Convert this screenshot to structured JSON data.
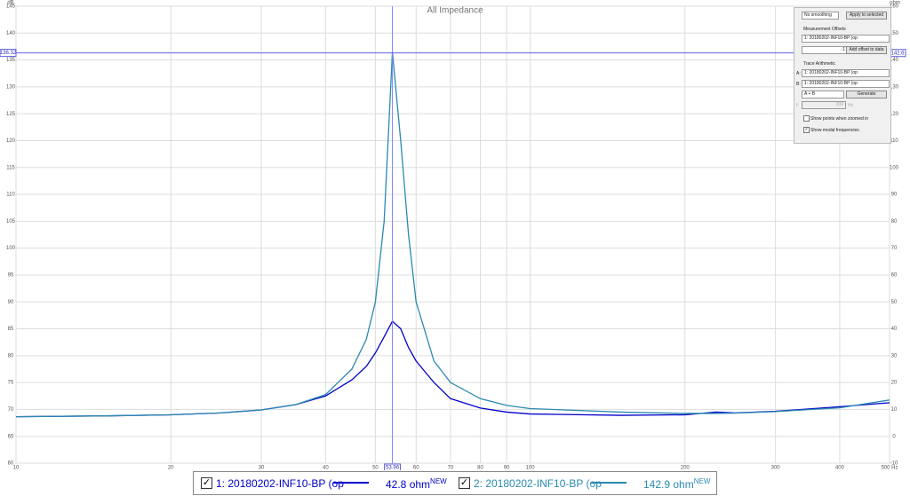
{
  "chart_data": {
    "type": "line",
    "title": "All Impedance",
    "ylabel": "dB",
    "y2label": "ohm",
    "xscale": "log",
    "grid": true,
    "xlim": [
      10,
      500
    ],
    "xticks": [
      10,
      20,
      30,
      40,
      50,
      60,
      70,
      80,
      90,
      100,
      200,
      300,
      400,
      {
        "value": 500,
        "label": "500 Hz"
      }
    ],
    "ylim": [
      60,
      145
    ],
    "yticks": [
      60,
      65,
      70,
      75,
      80,
      85,
      90,
      95,
      100,
      105,
      110,
      115,
      120,
      125,
      130,
      135,
      140,
      145
    ],
    "y2lim": [
      -10,
      160
    ],
    "y2ticks": [
      -10,
      0,
      10,
      20,
      30,
      40,
      50,
      60,
      70,
      80,
      90,
      100,
      110,
      120,
      130,
      140,
      150,
      160
    ],
    "cursor": {
      "x": 53.96,
      "y": 136.32,
      "y2": 142.6
    },
    "x": [
      10,
      15,
      20,
      25,
      30,
      35,
      40,
      45,
      48,
      50,
      52,
      53.96,
      56,
      58,
      60,
      65,
      70,
      80,
      90,
      100,
      150,
      200,
      230,
      250,
      300,
      400,
      500
    ],
    "series": [
      {
        "name": "1: 20180202-INF10-BP (op",
        "color": "#0000cc",
        "axis": "y2",
        "readout": "42.8 ohm",
        "badge": "NEW",
        "values": [
          7.3,
          7.6,
          8,
          8.7,
          9.8,
          11.8,
          15,
          21,
          26,
          31,
          37,
          42.8,
          40,
          33,
          28,
          20,
          14,
          10.5,
          9,
          8.3,
          7.8,
          8,
          9,
          8.7,
          9.3,
          11,
          12.5
        ]
      },
      {
        "name": "2: 20180202-INF10-BP (op",
        "color": "#2a8ab0",
        "axis": "y2",
        "readout": "142.9 ohm",
        "badge": "NEW",
        "values": [
          7.3,
          7.6,
          8,
          8.7,
          9.8,
          11.8,
          15.5,
          25,
          36,
          50,
          80,
          142.9,
          110,
          75,
          50,
          28,
          20,
          14,
          11.5,
          10.3,
          9,
          8.5,
          8.5,
          8.6,
          9.2,
          10.6,
          13.5
        ]
      }
    ]
  },
  "panel": {
    "smoothing": "No smoothing",
    "apply": "Apply to selected",
    "offsets_title": "Measurement Offsets",
    "offset_measurement": "1: 20180202-INF10-BP (op",
    "offset_value": "-1",
    "add_offset": "Add offset to data",
    "arith_title": "Trace Arithmetic",
    "a_label": "A:",
    "a_value": "1: 20180202-INF10-BP (op",
    "b_label": "B:",
    "b_value": "1: 20180202-INF10-BP (op",
    "operation": "A + B",
    "generate": "Generate",
    "f_label": "f:",
    "f_value": "200",
    "f_unit": "Hz",
    "show_points": "Show points when zoomed in",
    "show_modal": "Show modal frequencies"
  }
}
